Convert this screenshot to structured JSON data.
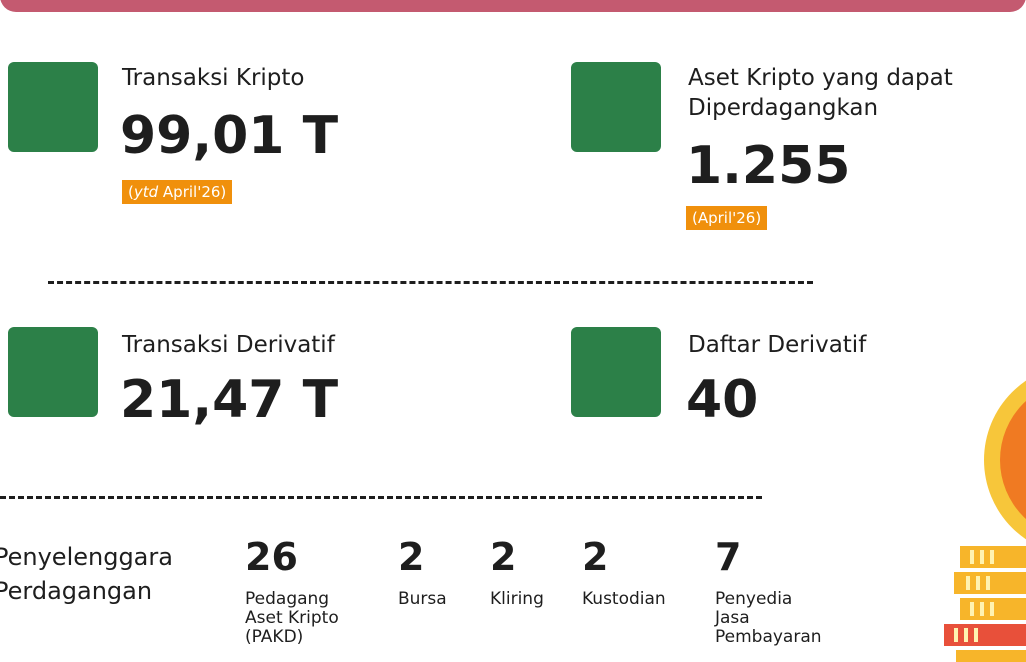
{
  "cards": [
    {
      "title": [
        "Transaksi Kripto"
      ],
      "value": "99,01 T",
      "badge": [
        "(",
        "ytd",
        " April'26)"
      ]
    },
    {
      "title": [
        "Aset Kripto yang dapat",
        "Diperdagangkan"
      ],
      "value": "1.255",
      "badge": [
        "(April'26)"
      ]
    },
    {
      "title": [
        "Transaksi Derivatif"
      ],
      "value": "21,47 T"
    },
    {
      "title": [
        "Daftar Derivatif"
      ],
      "value": "40"
    }
  ],
  "operators": {
    "label": [
      "Penyelenggara",
      "Perdagangan"
    ],
    "items": [
      {
        "value": "26",
        "label": [
          "Pedagang",
          "Aset Kripto",
          "(PAKD)"
        ]
      },
      {
        "value": "2",
        "label": [
          "Bursa"
        ]
      },
      {
        "value": "2",
        "label": [
          "Kliring"
        ]
      },
      {
        "value": "2",
        "label": [
          "Kustodian"
        ]
      },
      {
        "value": "7",
        "label": [
          "Penyedia",
          "Jasa",
          "Pembayaran"
        ]
      }
    ]
  }
}
